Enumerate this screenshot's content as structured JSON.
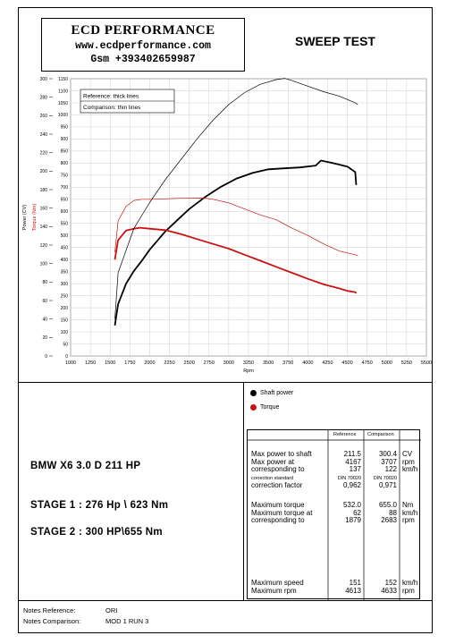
{
  "header": {
    "company": "ECD PERFORMANCE",
    "website": "www.ecdperformance.com",
    "phone": "Gsm +393402659987",
    "test_title": "SWEEP TEST"
  },
  "chart_data": {
    "type": "line",
    "xlabel": "Rpm",
    "ylabel_left": "Power (CV)",
    "ylabel_right": "Torque (Nm)",
    "xlim": [
      1000,
      5500
    ],
    "ylim_power": [
      0,
      300
    ],
    "ylim_torque": [
      0,
      1150
    ],
    "x_ticks": [
      "1000",
      "1250",
      "1500",
      "1750",
      "2000",
      "2250",
      "2500",
      "2750",
      "3000",
      "3250",
      "3500",
      "3750",
      "4000",
      "4250",
      "4500",
      "4750",
      "5000",
      "5250",
      "5500"
    ],
    "power_ticks": [
      "0",
      "20",
      "40",
      "60",
      "80",
      "100",
      "120",
      "140",
      "160",
      "180",
      "200",
      "220",
      "240",
      "260",
      "280",
      "300"
    ],
    "torque_ticks": [
      "0",
      "50",
      "100",
      "150",
      "200",
      "250",
      "300",
      "350",
      "400",
      "450",
      "500",
      "550",
      "600",
      "650",
      "700",
      "750",
      "800",
      "850",
      "900",
      "950",
      "1000",
      "1050",
      "1100",
      "1150"
    ],
    "grid": true,
    "annotation_lines": [
      "Reference: thick lines",
      "Comparison: thin lines"
    ],
    "series": [
      {
        "name": "Shaft power",
        "line": "thick",
        "color": "#000000",
        "axis": "power",
        "x": [
          1560,
          1600,
          1700,
          1800,
          1900,
          2000,
          2100,
          2200,
          2300,
          2500,
          2700,
          2900,
          3100,
          3300,
          3500,
          3700,
          3900,
          4100,
          4167,
          4300,
          4500,
          4600,
          4613
        ],
        "y": [
          33,
          56,
          78,
          92,
          103,
          115,
          125,
          135,
          143,
          159,
          172,
          183,
          192,
          198,
          202,
          203,
          204,
          206,
          211.5,
          209,
          205,
          199,
          185
        ]
      },
      {
        "name": "Torque",
        "line": "thick",
        "color": "#cc1111",
        "axis": "torque",
        "x": [
          1560,
          1600,
          1700,
          1800,
          1879,
          2000,
          2200,
          2400,
          2600,
          2800,
          3000,
          3200,
          3400,
          3600,
          3800,
          4000,
          4200,
          4400,
          4500,
          4600,
          4613
        ],
        "y": [
          400,
          480,
          520,
          528,
          532,
          528,
          522,
          505,
          485,
          465,
          445,
          420,
          395,
          370,
          345,
          320,
          297,
          280,
          270,
          265,
          260
        ]
      },
      {
        "name": "Shaft power",
        "line": "thin",
        "color": "#000000",
        "axis": "power",
        "x": [
          1560,
          1600,
          1800,
          2000,
          2200,
          2400,
          2600,
          2800,
          3000,
          3200,
          3400,
          3600,
          3707,
          3800,
          4000,
          4200,
          4400,
          4600,
          4633
        ],
        "y": [
          40,
          90,
          138,
          166,
          191,
          213,
          235,
          255,
          272,
          285,
          294,
          299,
          300.4,
          298,
          292,
          286,
          281,
          274,
          272
        ]
      },
      {
        "name": "Torque",
        "line": "thin",
        "color": "#cc1111",
        "axis": "torque",
        "x": [
          1560,
          1600,
          1700,
          1800,
          1900,
          2000,
          2200,
          2400,
          2683,
          2800,
          3000,
          3200,
          3400,
          3600,
          3800,
          4000,
          4200,
          4400,
          4600,
          4633
        ],
        "y": [
          430,
          560,
          620,
          645,
          650,
          650,
          652,
          654,
          655,
          650,
          635,
          610,
          585,
          565,
          530,
          500,
          465,
          435,
          420,
          415
        ]
      }
    ]
  },
  "legend": {
    "shaft_power": "Shaft power",
    "torque": "Torque",
    "shaft_color": "#000000",
    "torque_color": "#cc1111"
  },
  "left_panel": {
    "car": "BMW X6 3.0 D 211 HP",
    "stage1": "STAGE 1 : 276 Hp \\ 623 Nm",
    "stage2": "STAGE 2 : 300 HP\\655 Nm"
  },
  "table": {
    "col_reference": "Reference",
    "col_comparison": "Comparison",
    "rows": [
      {
        "label": "Max power to shaft",
        "ref": "211.5",
        "cmp": "300.4",
        "unit": "CV"
      },
      {
        "label": "Max power at",
        "ref": "4167",
        "cmp": "3707",
        "unit": "rpm"
      },
      {
        "label": "corresponding to",
        "ref": "137",
        "cmp": "122",
        "unit": "km/h"
      },
      {
        "label": "correction standard",
        "ref": "DIN 70020",
        "cmp": "DIN 70020",
        "unit": ""
      },
      {
        "label": "correction factor",
        "ref": "0,962",
        "cmp": "0,971",
        "unit": ""
      },
      {
        "label": "Maximum torque",
        "ref": "532.0",
        "cmp": "655.0",
        "unit": "Nm"
      },
      {
        "label": "Maximum torque at",
        "ref": "62",
        "cmp": "88",
        "unit": "km/h"
      },
      {
        "label": "corresponding to",
        "ref": "1879",
        "cmp": "2683",
        "unit": "rpm"
      },
      {
        "label": "Maximum speed",
        "ref": "151",
        "cmp": "152",
        "unit": "km/h"
      },
      {
        "label": "Maximum rpm",
        "ref": "4613",
        "cmp": "4633",
        "unit": "rpm"
      }
    ]
  },
  "notes": {
    "reference_label": "Notes Reference:",
    "reference_value": "ORI",
    "comparison_label": "Notes Comparison:",
    "comparison_value": "MOD 1 RUN 3"
  }
}
